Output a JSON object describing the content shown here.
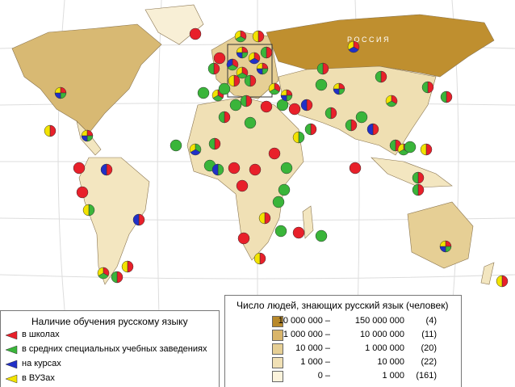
{
  "map": {
    "country_label": "Р О С С И Я",
    "learning_legend": {
      "title": "Наличие обучения русскому языку",
      "items": [
        "в школах",
        "в средних специальных учебных заведениях",
        "на курсах",
        "в ВУЗах"
      ]
    },
    "speakers_legend": {
      "title": "Число людей, знающих русский язык (человек)",
      "rows": [
        {
          "from": "10 000 000 –",
          "to": "150 000 000",
          "count": "(4)"
        },
        {
          "from": "1 000 000 –",
          "to": "10 000 000",
          "count": "(11)"
        },
        {
          "from": "10 000 –",
          "to": "1 000 000",
          "count": "(20)"
        },
        {
          "from": "1 000 –",
          "to": "10 000",
          "count": "(22)"
        },
        {
          "from": "0 –",
          "to": "1 000",
          "count": "(161)"
        }
      ]
    }
  }
}
